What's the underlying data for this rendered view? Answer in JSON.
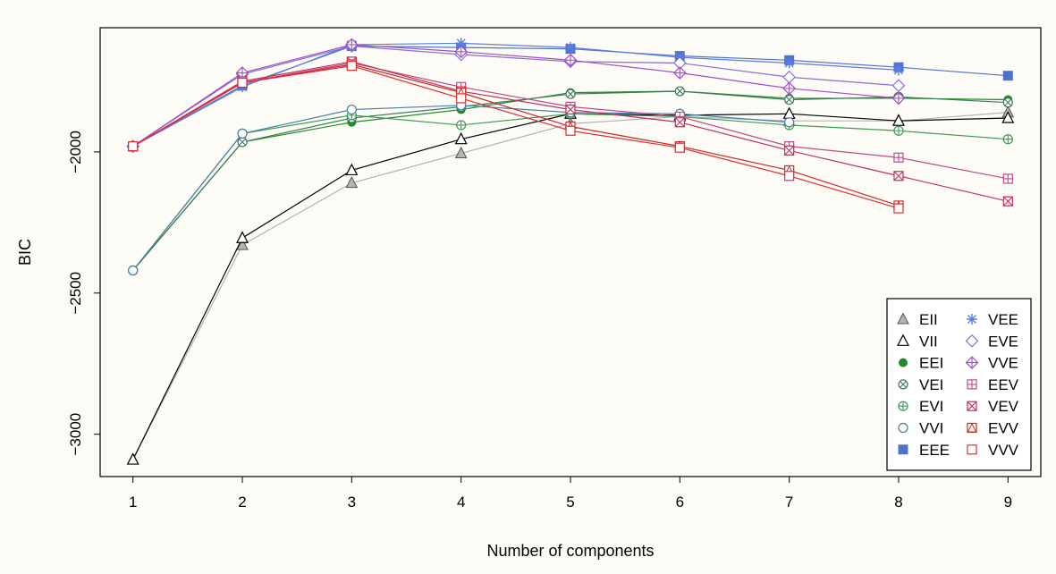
{
  "chart_data": {
    "type": "line",
    "xlabel": "Number of components",
    "ylabel": "BIC",
    "categories": [
      1,
      2,
      3,
      4,
      5,
      6,
      7,
      8,
      9
    ],
    "xlim": [
      0.7,
      9.3
    ],
    "ylim": [
      -3150,
      -1560
    ],
    "yticks": [
      -3000,
      -2500,
      -2000
    ],
    "grid": false,
    "legend_position": "bottom-right",
    "series": [
      {
        "name": "EII",
        "color": "#b3b3b3",
        "marker": "triangle-filled",
        "values": [
          -3090,
          -2330,
          -2110,
          -2005,
          -1900,
          -1875,
          -1890,
          -1890,
          -1860
        ]
      },
      {
        "name": "VII",
        "color": "#000000",
        "marker": "triangle-open",
        "values": [
          -3090,
          -2305,
          -2065,
          -1955,
          -1865,
          -1870,
          -1865,
          -1890,
          -1880
        ]
      },
      {
        "name": "EEI",
        "color": "#228b22",
        "marker": "circle-filled",
        "values": [
          -2420,
          -1965,
          -1895,
          -1850,
          -1790,
          -1785,
          -1810,
          -1810,
          -1815
        ]
      },
      {
        "name": "VEI",
        "color": "#3c7a5a",
        "marker": "circle-x",
        "values": [
          -2420,
          -1965,
          -1880,
          -1840,
          -1795,
          -1785,
          -1815,
          -1805,
          -1825
        ]
      },
      {
        "name": "EVI",
        "color": "#3d9a55",
        "marker": "circle-plus",
        "values": [
          -2420,
          -1935,
          -1870,
          -1905,
          -1865,
          -1875,
          -1905,
          -1925,
          -1955
        ]
      },
      {
        "name": "VVI",
        "color": "#4a7fa8",
        "marker": "circle-open",
        "values": [
          -2420,
          -1935,
          -1850,
          -1835,
          -1860,
          -1865,
          -1895,
          null,
          null
        ]
      },
      {
        "name": "EEE",
        "color": "#4f73cc",
        "marker": "square-filled",
        "values": [
          -1980,
          -1765,
          -1625,
          -1630,
          -1635,
          -1660,
          -1675,
          -1700,
          -1730
        ]
      },
      {
        "name": "VEE",
        "color": "#5a7ee0",
        "marker": "star",
        "values": [
          -1980,
          -1770,
          -1620,
          -1615,
          -1630,
          -1665,
          -1685,
          -1710,
          null
        ]
      },
      {
        "name": "EVE",
        "color": "#8a6fd6",
        "marker": "diamond-open",
        "values": [
          -1980,
          -1725,
          -1625,
          -1655,
          -1680,
          -1685,
          -1735,
          -1765,
          null
        ]
      },
      {
        "name": "VVE",
        "color": "#a24fc2",
        "marker": "diamond-plus",
        "values": [
          -1980,
          -1720,
          -1620,
          -1645,
          -1675,
          -1720,
          -1775,
          -1810,
          null
        ]
      },
      {
        "name": "EEV",
        "color": "#c04a8a",
        "marker": "square-plus",
        "values": [
          -1980,
          -1755,
          -1685,
          -1770,
          -1840,
          -1875,
          -1980,
          -2020,
          -2095
        ]
      },
      {
        "name": "VEV",
        "color": "#c0305a",
        "marker": "square-x",
        "values": [
          -1980,
          -1750,
          -1680,
          -1785,
          -1850,
          -1895,
          -1995,
          -2085,
          -2175
        ]
      },
      {
        "name": "EVV",
        "color": "#cc2a2a",
        "marker": "triangle-in-square",
        "values": [
          -1980,
          -1755,
          -1690,
          -1790,
          -1910,
          -1980,
          -2065,
          -2190,
          null
        ]
      },
      {
        "name": "VVV",
        "color": "#e03030",
        "marker": "square-open",
        "values": [
          -1980,
          -1755,
          -1695,
          -1810,
          -1925,
          -1985,
          -2085,
          -2200,
          null
        ]
      }
    ]
  }
}
